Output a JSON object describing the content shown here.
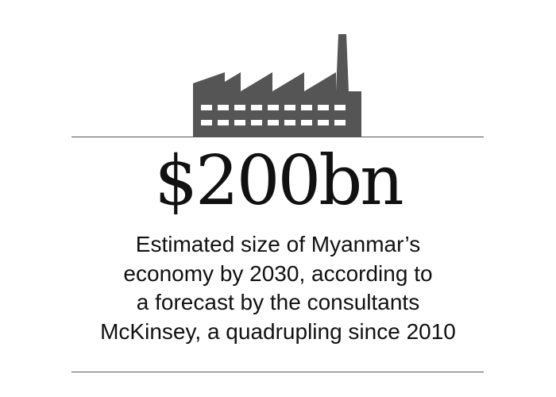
{
  "graphic": {
    "icon": "factory-icon",
    "colors": {
      "icon": "#555555",
      "text": "#111111",
      "rule": "#555555",
      "background": "#ffffff"
    },
    "headline": "$200bn",
    "caption_lines": [
      "Estimated size of Myanmar’s",
      "economy by 2030, according to",
      "a forecast by the consultants",
      "McKinsey, a quadrupling since 2010"
    ]
  }
}
